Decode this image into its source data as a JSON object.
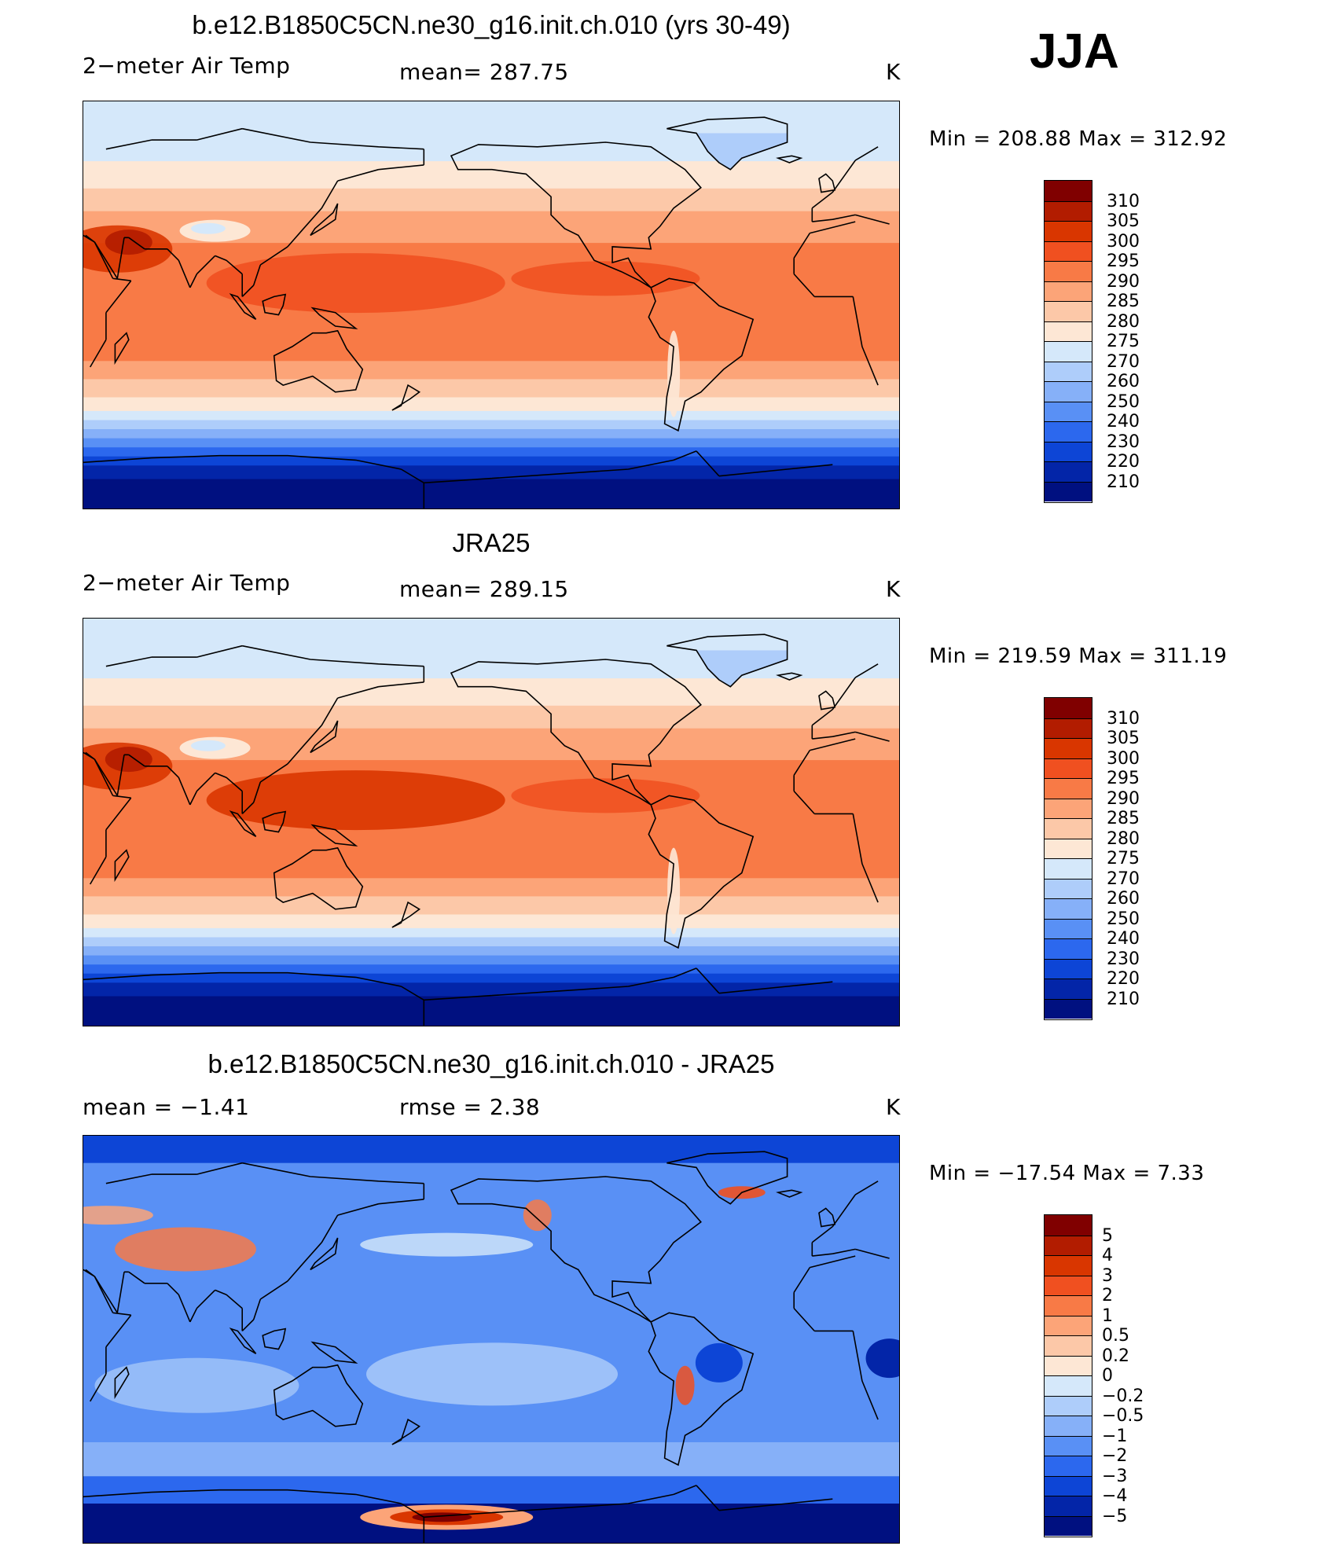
{
  "season": "JJA",
  "panels": [
    {
      "title": "b.e12.B1850C5CN.ne30_g16.init.ch.010 (yrs 30-49)",
      "left_label": "2−meter Air Temp",
      "center_label": "mean=  287.75",
      "units": "K",
      "minmax": "Min  =  208.88  Max  =  312.92",
      "map_kind": "model_temperature",
      "colorbar": {
        "labels": [
          "310",
          "305",
          "300",
          "295",
          "290",
          "285",
          "280",
          "275",
          "270",
          "260",
          "250",
          "240",
          "230",
          "220",
          "210"
        ],
        "colors": [
          "#800000",
          "#b21c00",
          "#d93600",
          "#f05020",
          "#f87a46",
          "#fca478",
          "#fcc8a8",
          "#fde7d5",
          "#d5e8fa",
          "#aecdfa",
          "#86b0f8",
          "#5990f5",
          "#2c68ee",
          "#0d45d6",
          "#0325a8",
          "#001080"
        ]
      }
    },
    {
      "title": "JRA25",
      "left_label": "2−meter Air Temp",
      "center_label": "mean=  289.15",
      "units": "K",
      "minmax": "Min  =  219.59  Max  =  311.19",
      "map_kind": "obs_temperature",
      "colorbar": {
        "labels": [
          "310",
          "305",
          "300",
          "295",
          "290",
          "285",
          "280",
          "275",
          "270",
          "260",
          "250",
          "240",
          "230",
          "220",
          "210"
        ],
        "colors": [
          "#800000",
          "#b21c00",
          "#d93600",
          "#f05020",
          "#f87a46",
          "#fca478",
          "#fcc8a8",
          "#fde7d5",
          "#d5e8fa",
          "#aecdfa",
          "#86b0f8",
          "#5990f5",
          "#2c68ee",
          "#0d45d6",
          "#0325a8",
          "#001080"
        ]
      }
    },
    {
      "title": "b.e12.B1850C5CN.ne30_g16.init.ch.010 - JRA25",
      "left_label": "mean  =    −1.41",
      "center_label": "rmse  =      2.38",
      "units": "K",
      "minmax": "Min  =  −17.54  Max  =      7.33",
      "map_kind": "difference",
      "colorbar": {
        "labels": [
          "5",
          "4",
          "3",
          "2",
          "1",
          "0.5",
          "0.2",
          "0",
          "−0.2",
          "−0.5",
          "−1",
          "−2",
          "−3",
          "−4",
          "−5"
        ],
        "colors": [
          "#800000",
          "#b21c00",
          "#d93600",
          "#f05020",
          "#f87a46",
          "#fca478",
          "#fcc8a8",
          "#fde7d5",
          "#d5e8fa",
          "#aecdfa",
          "#86b0f8",
          "#5990f5",
          "#2c68ee",
          "#0d45d6",
          "#0325a8",
          "#001080"
        ]
      }
    }
  ]
}
